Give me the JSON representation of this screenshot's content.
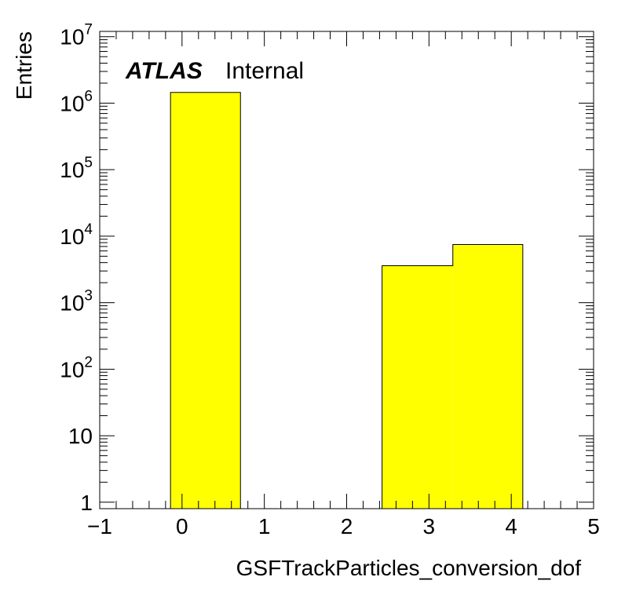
{
  "chart_data": {
    "type": "bar",
    "xlabel": "GSFTrackParticles_conversion_dof",
    "ylabel": "Entries",
    "yscale": "log",
    "xlim": [
      -1,
      5
    ],
    "ylim": [
      0.8,
      12000000
    ],
    "x_ticks": [
      {
        "value": -1,
        "label": "−1"
      },
      {
        "value": 0,
        "label": "0"
      },
      {
        "value": 1,
        "label": "1"
      },
      {
        "value": 2,
        "label": "2"
      },
      {
        "value": 3,
        "label": "3"
      },
      {
        "value": 4,
        "label": "4"
      },
      {
        "value": 5,
        "label": "5"
      }
    ],
    "y_ticks": [
      {
        "value": 1,
        "base": "1",
        "exp": ""
      },
      {
        "value": 10,
        "base": "10",
        "exp": ""
      },
      {
        "value": 100,
        "base": "10",
        "exp": "2"
      },
      {
        "value": 1000,
        "base": "10",
        "exp": "3"
      },
      {
        "value": 10000,
        "base": "10",
        "exp": "4"
      },
      {
        "value": 100000,
        "base": "10",
        "exp": "5"
      },
      {
        "value": 1000000,
        "base": "10",
        "exp": "6"
      },
      {
        "value": 10000000,
        "base": "10",
        "exp": "7"
      }
    ],
    "bins": [
      {
        "low": -0.14,
        "high": 0.71,
        "value": 1450000
      },
      {
        "low": 2.43,
        "high": 3.29,
        "value": 3600
      },
      {
        "low": 3.29,
        "high": 4.14,
        "value": 7500
      }
    ],
    "fill_color": "#ffff00",
    "line_color": "#000000",
    "annotation": {
      "bold": "ATLAS",
      "normal": "Internal"
    }
  }
}
